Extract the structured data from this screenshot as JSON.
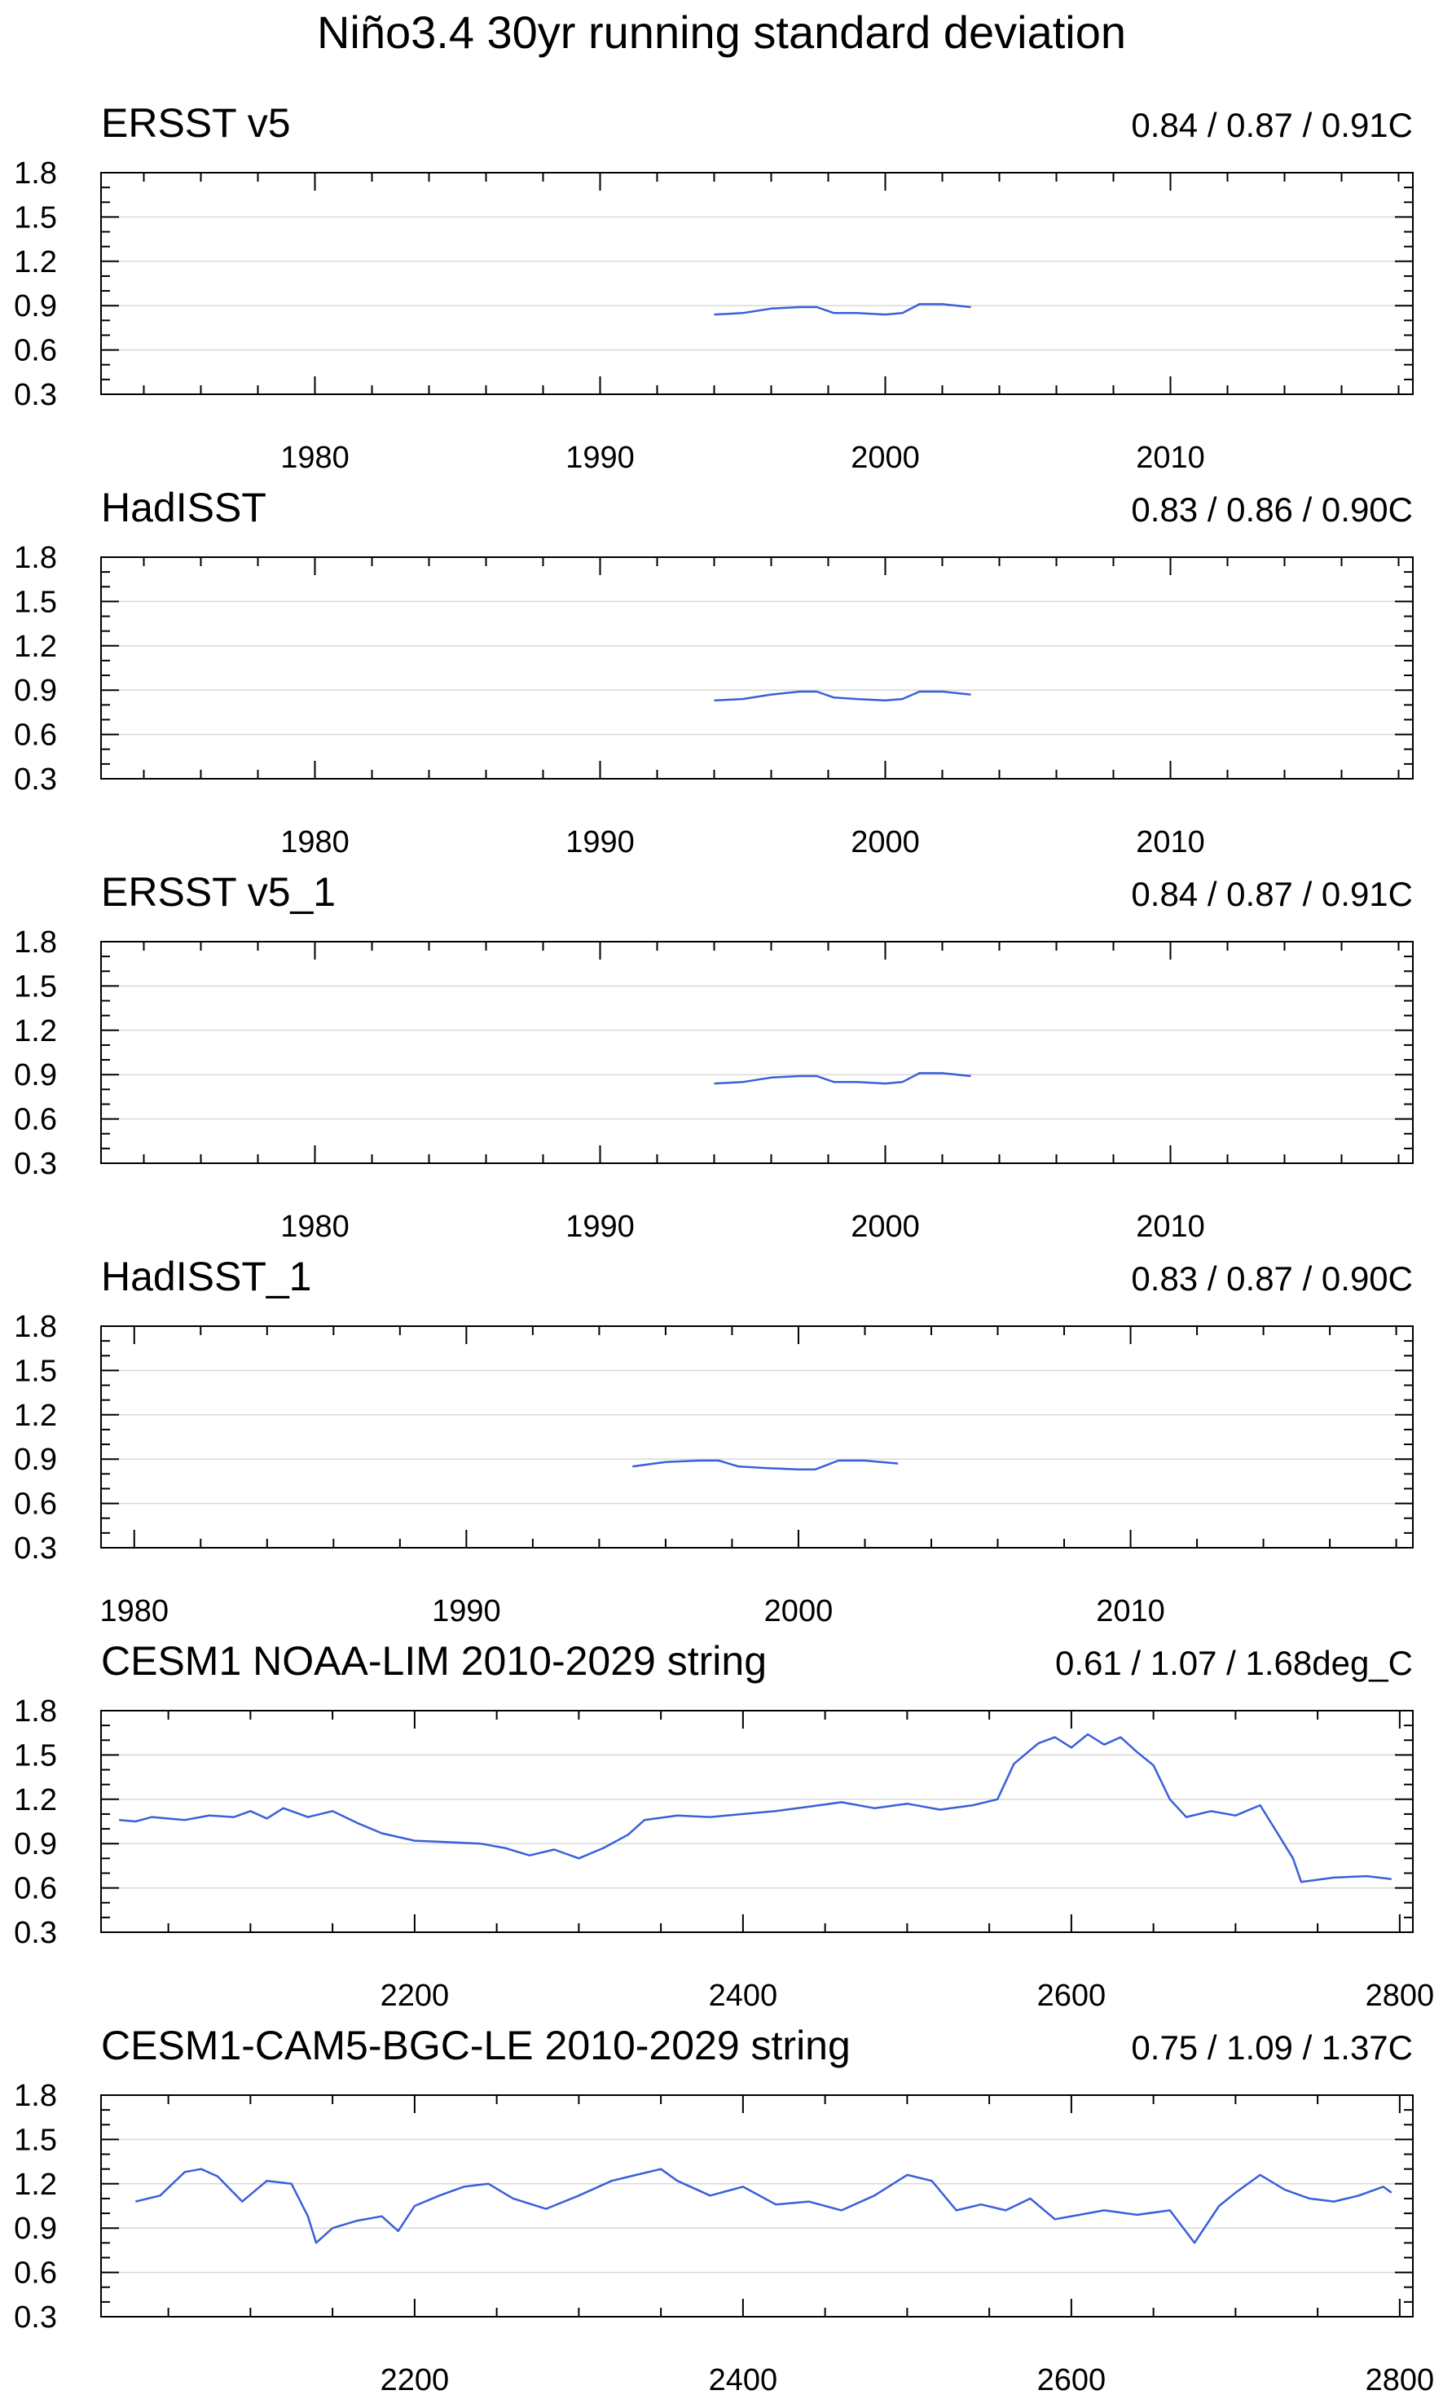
{
  "figure": {
    "title": "Niño3.4 30yr running standard deviation"
  },
  "colors": {
    "series_line": "#3a5fd9",
    "axis": "#000000",
    "grid": "#d9d9d9"
  },
  "chart_data": [
    {
      "type": "line",
      "title": "ERSST v5",
      "stats": "0.84 / 0.87 / 0.91C",
      "xlim": [
        1972.5,
        2018.5
      ],
      "xticks": [
        1980,
        1990,
        2000,
        2010
      ],
      "ylim": [
        0.3,
        1.8
      ],
      "yticks": [
        0.3,
        0.6,
        0.9,
        1.2,
        1.5,
        1.8
      ],
      "series": [
        {
          "x": [
            1994.0,
            1995.0,
            1996.0,
            1997.0,
            1997.6,
            1998.2,
            1999.0,
            2000.0,
            2000.6,
            2001.2,
            2002.0,
            2003.0
          ],
          "values": [
            0.84,
            0.85,
            0.88,
            0.89,
            0.89,
            0.85,
            0.85,
            0.84,
            0.85,
            0.91,
            0.91,
            0.89
          ]
        }
      ]
    },
    {
      "type": "line",
      "title": "HadISST",
      "stats": "0.83 / 0.86 / 0.90C",
      "xlim": [
        1972.5,
        2018.5
      ],
      "xticks": [
        1980,
        1990,
        2000,
        2010
      ],
      "ylim": [
        0.3,
        1.8
      ],
      "yticks": [
        0.3,
        0.6,
        0.9,
        1.2,
        1.5,
        1.8
      ],
      "series": [
        {
          "x": [
            1994.0,
            1995.0,
            1996.0,
            1997.0,
            1997.6,
            1998.2,
            1999.0,
            2000.0,
            2000.6,
            2001.2,
            2002.0,
            2003.0
          ],
          "values": [
            0.83,
            0.84,
            0.87,
            0.89,
            0.89,
            0.85,
            0.84,
            0.83,
            0.84,
            0.89,
            0.89,
            0.87
          ]
        }
      ]
    },
    {
      "type": "line",
      "title": "ERSST v5_1",
      "stats": "0.84 / 0.87 / 0.91C",
      "xlim": [
        1972.5,
        2018.5
      ],
      "xticks": [
        1980,
        1990,
        2000,
        2010
      ],
      "ylim": [
        0.3,
        1.8
      ],
      "yticks": [
        0.3,
        0.6,
        0.9,
        1.2,
        1.5,
        1.8
      ],
      "series": [
        {
          "x": [
            1994.0,
            1995.0,
            1996.0,
            1997.0,
            1997.6,
            1998.2,
            1999.0,
            2000.0,
            2000.6,
            2001.2,
            2002.0,
            2003.0
          ],
          "values": [
            0.84,
            0.85,
            0.88,
            0.89,
            0.89,
            0.85,
            0.85,
            0.84,
            0.85,
            0.91,
            0.91,
            0.89
          ]
        }
      ]
    },
    {
      "type": "line",
      "title": "HadISST_1",
      "stats": "0.83 / 0.87 / 0.90C",
      "xlim": [
        1979.0,
        2018.5
      ],
      "xticks": [
        1980,
        1990,
        2000,
        2010
      ],
      "ylim": [
        0.3,
        1.8
      ],
      "yticks": [
        0.3,
        0.6,
        0.9,
        1.2,
        1.5,
        1.8
      ],
      "series": [
        {
          "x": [
            1995.0,
            1996.0,
            1997.0,
            1997.6,
            1998.2,
            1999.0,
            2000.0,
            2000.5,
            2001.2,
            2002.0,
            2003.0
          ],
          "values": [
            0.85,
            0.88,
            0.89,
            0.89,
            0.85,
            0.84,
            0.83,
            0.83,
            0.89,
            0.89,
            0.87
          ]
        }
      ]
    },
    {
      "type": "line",
      "title": "CESM1 NOAA-LIM 2010-2029 string",
      "stats": "0.61 / 1.07 / 1.68deg_C",
      "xlim": [
        2009,
        2808
      ],
      "xticks": [
        2200,
        2400,
        2600,
        2800
      ],
      "ylim": [
        0.3,
        1.8
      ],
      "yticks": [
        0.3,
        0.6,
        0.9,
        1.2,
        1.5,
        1.8
      ],
      "series": [
        {
          "x": [
            2020,
            2030,
            2040,
            2060,
            2075,
            2090,
            2100,
            2110,
            2120,
            2135,
            2150,
            2165,
            2180,
            2200,
            2220,
            2240,
            2255,
            2270,
            2285,
            2300,
            2315,
            2330,
            2340,
            2360,
            2380,
            2400,
            2420,
            2440,
            2460,
            2480,
            2500,
            2520,
            2540,
            2555,
            2565,
            2580,
            2590,
            2600,
            2610,
            2620,
            2630,
            2640,
            2650,
            2660,
            2670,
            2685,
            2700,
            2715,
            2725,
            2735,
            2740,
            2760,
            2780,
            2795
          ],
          "values": [
            1.06,
            1.05,
            1.08,
            1.06,
            1.09,
            1.08,
            1.12,
            1.07,
            1.14,
            1.08,
            1.12,
            1.04,
            0.97,
            0.92,
            0.91,
            0.9,
            0.87,
            0.82,
            0.86,
            0.8,
            0.87,
            0.96,
            1.06,
            1.09,
            1.08,
            1.1,
            1.12,
            1.15,
            1.18,
            1.14,
            1.17,
            1.13,
            1.16,
            1.2,
            1.44,
            1.58,
            1.62,
            1.55,
            1.64,
            1.57,
            1.62,
            1.52,
            1.43,
            1.2,
            1.08,
            1.12,
            1.09,
            1.16,
            0.98,
            0.8,
            0.64,
            0.67,
            0.68,
            0.66
          ]
        }
      ]
    },
    {
      "type": "line",
      "title": "CESM1-CAM5-BGC-LE 2010-2029 string",
      "stats": "0.75 / 1.09 / 1.37C",
      "xlim": [
        2009,
        2808
      ],
      "xticks": [
        2200,
        2400,
        2600,
        2800
      ],
      "ylim": [
        0.3,
        1.8
      ],
      "yticks": [
        0.3,
        0.6,
        0.9,
        1.2,
        1.5,
        1.8
      ],
      "series": [
        {
          "x": [
            2030,
            2045,
            2060,
            2070,
            2080,
            2095,
            2110,
            2125,
            2135,
            2140,
            2150,
            2165,
            2180,
            2190,
            2200,
            2215,
            2230,
            2245,
            2260,
            2280,
            2300,
            2320,
            2335,
            2350,
            2360,
            2380,
            2400,
            2420,
            2440,
            2460,
            2480,
            2500,
            2515,
            2530,
            2545,
            2560,
            2575,
            2590,
            2605,
            2620,
            2640,
            2660,
            2675,
            2690,
            2700,
            2715,
            2730,
            2745,
            2760,
            2775,
            2790,
            2795
          ],
          "values": [
            1.08,
            1.12,
            1.28,
            1.3,
            1.25,
            1.08,
            1.22,
            1.2,
            0.98,
            0.8,
            0.9,
            0.95,
            0.98,
            0.88,
            1.05,
            1.12,
            1.18,
            1.2,
            1.1,
            1.03,
            1.12,
            1.22,
            1.26,
            1.3,
            1.22,
            1.12,
            1.18,
            1.06,
            1.08,
            1.02,
            1.12,
            1.26,
            1.22,
            1.02,
            1.06,
            1.02,
            1.1,
            0.96,
            0.99,
            1.02,
            0.99,
            1.02,
            0.8,
            1.05,
            1.14,
            1.26,
            1.16,
            1.1,
            1.08,
            1.12,
            1.18,
            1.14
          ]
        }
      ]
    }
  ]
}
